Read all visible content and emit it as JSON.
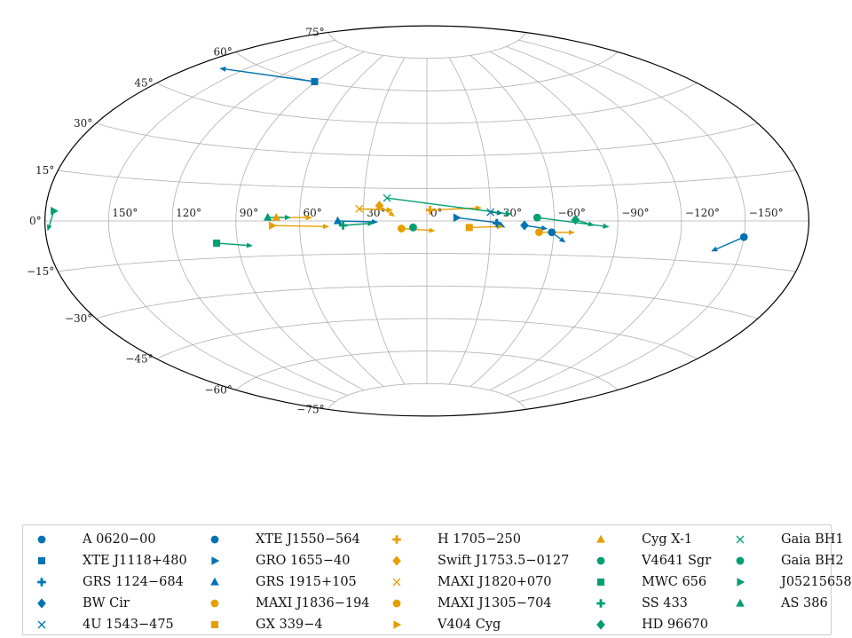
{
  "colors": {
    "blue": "#0072B2",
    "orange": "#E69F00",
    "green": "#009E73",
    "grid": "#b0b0b0",
    "frame": "#000000"
  },
  "chart_data": {
    "type": "scatter",
    "projection": "aitoff",
    "grid": true,
    "legend_position": "bottom",
    "xticks": [
      "150°",
      "120°",
      "90°",
      "60°",
      "30°",
      "0°",
      "−30°",
      "−60°",
      "−90°",
      "−120°",
      "−150°"
    ],
    "yticks": [
      "75°",
      "60°",
      "45°",
      "30°",
      "15°",
      "0°",
      "−15°",
      "−30°",
      "−45°",
      "−60°",
      "−75°"
    ],
    "series": [
      {
        "name": "A 0620−00",
        "marker": "circle",
        "color": "blue",
        "l": -150,
        "b": -5.5,
        "end_l": -136,
        "end_b": -11
      },
      {
        "name": "XTE J1118+480",
        "marker": "square",
        "color": "blue",
        "l": 91,
        "b": 60,
        "end_l": 165,
        "end_b": 55
      },
      {
        "name": "GRS 1124−684",
        "marker": "plus",
        "color": "blue",
        "l": -33,
        "b": -1,
        "end_l": -37,
        "end_b": -3
      },
      {
        "name": "BW Cir",
        "marker": "diamond",
        "color": "blue",
        "l": -46,
        "b": -2,
        "end_l": -57,
        "end_b": -3.5
      },
      {
        "name": "4U 1543−475",
        "marker": "x",
        "color": "blue",
        "l": -30,
        "b": 4,
        "end_l": -36,
        "end_b": 3.5
      },
      {
        "name": "XTE J1550−564",
        "marker": "circle",
        "color": "blue",
        "l": -59,
        "b": -5,
        "end_l": -66,
        "end_b": -9.5
      },
      {
        "name": "GRO 1655−40",
        "marker": "tri-right",
        "color": "blue",
        "l": -14,
        "b": 1.5,
        "end_l": -35,
        "end_b": -1
      },
      {
        "name": "GRS 1915+105",
        "marker": "tri-up",
        "color": "blue",
        "l": 42,
        "b": 0,
        "end_l": 23,
        "end_b": -0.5
      },
      {
        "name": "MAXI J1836−194",
        "marker": "circle",
        "color": "orange",
        "l": 12,
        "b": -3.5,
        "end_l": -4,
        "end_b": -4.5
      },
      {
        "name": "GX 339−4",
        "marker": "square",
        "color": "orange",
        "l": -20,
        "b": -3,
        "end_l": -36,
        "end_b": -2.5
      },
      {
        "name": "H 1705−250",
        "marker": "plus",
        "color": "orange",
        "l": -1.5,
        "b": 5,
        "end_l": -26,
        "end_b": 6
      },
      {
        "name": "Swift J1753.5−0127",
        "marker": "diamond",
        "color": "orange",
        "l": 22.5,
        "b": 7,
        "end_l": 15,
        "end_b": 2
      },
      {
        "name": "MAXI J1820+070",
        "marker": "x",
        "color": "orange",
        "l": 32,
        "b": 5.5,
        "end_l": 16,
        "end_b": 5
      },
      {
        "name": "MAXI J1305−704",
        "marker": "circle",
        "color": "orange",
        "l": -53,
        "b": -5,
        "end_l": -70,
        "end_b": -5
      },
      {
        "name": "V404 Cyg",
        "marker": "tri-right",
        "color": "orange",
        "l": 73,
        "b": -2,
        "end_l": 46,
        "end_b": -2.5
      },
      {
        "name": "Cyg X-1",
        "marker": "tri-up",
        "color": "orange",
        "l": 71,
        "b": 1.5,
        "end_l": 54,
        "end_b": 1.5
      },
      {
        "name": "V4641 Sgr",
        "marker": "circle",
        "color": "green",
        "l": 6.5,
        "b": -3,
        "end_l": 6.5,
        "end_b": -1
      },
      {
        "name": "MWC 656",
        "marker": "square",
        "color": "green",
        "l": 100,
        "b": -9,
        "end_l": 83,
        "end_b": -10.5
      },
      {
        "name": "SS 433",
        "marker": "plus",
        "color": "green",
        "l": 39.5,
        "b": -2,
        "end_l": 25,
        "end_b": -1
      },
      {
        "name": "HD 96670",
        "marker": "diamond",
        "color": "green",
        "l": -70,
        "b": 0.5,
        "end_l": -79,
        "end_b": -2
      },
      {
        "name": "Gaia BH1",
        "marker": "x",
        "color": "green",
        "l": 19,
        "b": 10.5,
        "end_l": -40,
        "end_b": 3
      },
      {
        "name": "Gaia BH2",
        "marker": "circle",
        "color": "green",
        "l": -52,
        "b": 1.5,
        "end_l": -86,
        "end_b": -2.5
      },
      {
        "name": "J05215658",
        "marker": "tri-right",
        "color": "green",
        "l": 176,
        "b": 3,
        "end_l": 179,
        "end_b": -3
      },
      {
        "name": "AS 386",
        "marker": "tri-up",
        "color": "green",
        "l": 75,
        "b": 1.5,
        "end_l": 64,
        "end_b": 1.5
      }
    ]
  }
}
